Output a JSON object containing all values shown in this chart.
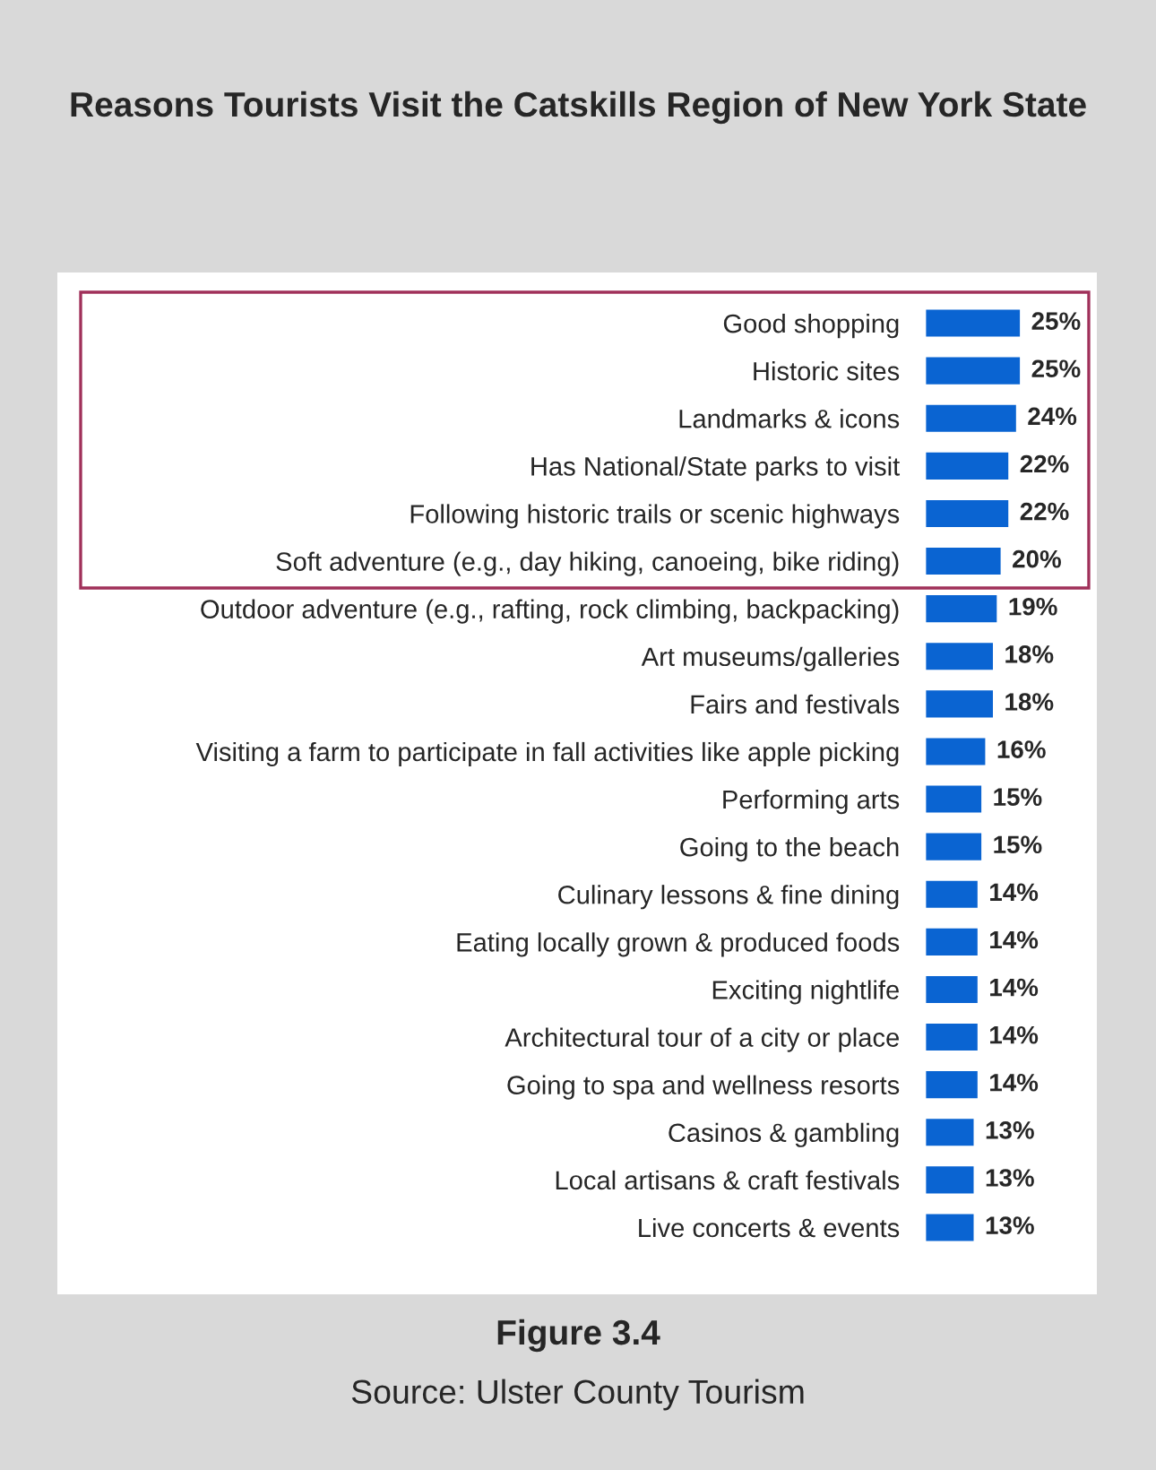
{
  "chart_data": {
    "type": "bar",
    "orientation": "horizontal",
    "title": "Reasons Tourists Visit the Catskills Region of New York State",
    "categories": [
      "Good shopping",
      "Historic sites",
      "Landmarks & icons",
      "Has National/State parks to visit",
      "Following historic trails or scenic highways",
      "Soft adventure (e.g., day hiking, canoeing, bike riding)",
      "Outdoor adventure (e.g., rafting, rock climbing, backpacking)",
      "Art museums/galleries",
      "Fairs and festivals",
      "Visiting a farm to participate in fall activities like apple picking",
      "Performing arts",
      "Going to the beach",
      "Culinary lessons & fine dining",
      "Eating locally grown & produced foods",
      "Exciting nightlife",
      "Architectural tour of a city or place",
      "Going to spa and wellness resorts",
      "Casinos & gambling",
      "Local artisans & craft festivals",
      "Live concerts & events"
    ],
    "values": [
      25,
      25,
      24,
      22,
      22,
      20,
      19,
      18,
      18,
      16,
      15,
      15,
      14,
      14,
      14,
      14,
      14,
      13,
      13,
      13
    ],
    "value_labels": [
      "25%",
      "25%",
      "24%",
      "22%",
      "22%",
      "20%",
      "19%",
      "18%",
      "18%",
      "16%",
      "15%",
      "15%",
      "14%",
      "14%",
      "14%",
      "14%",
      "14%",
      "13%",
      "13%",
      "13%"
    ],
    "color": "#0a64d2",
    "annotations": [
      "Figure 3.4",
      "Source: Ulster County Tourism"
    ]
  }
}
